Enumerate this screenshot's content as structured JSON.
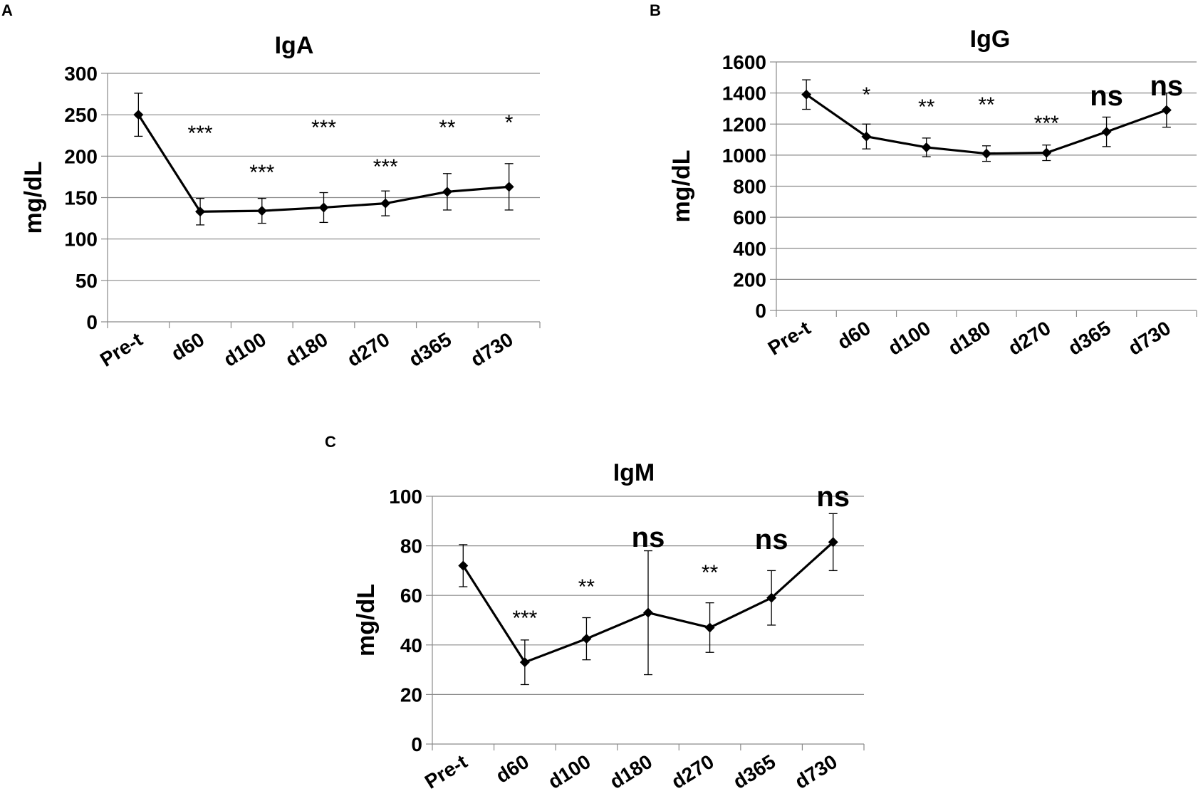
{
  "chart_data": [
    {
      "panel": "A",
      "type": "line",
      "title": "IgA",
      "ylabel": "mg/dL",
      "xlabel": "",
      "categories": [
        "Pre-t",
        "d60",
        "d100",
        "d180",
        "d270",
        "d365",
        "d730"
      ],
      "values": [
        250,
        133,
        134,
        138,
        143,
        157,
        163
      ],
      "errors": [
        26,
        16,
        15,
        18,
        15,
        22,
        28
      ],
      "significance": [
        "",
        "***",
        "***",
        "***",
        "***",
        "**",
        "*"
      ],
      "ylim": [
        0,
        300
      ],
      "yticks": [
        0,
        50,
        100,
        150,
        200,
        250,
        300
      ],
      "grid": true
    },
    {
      "panel": "B",
      "type": "line",
      "title": "IgG",
      "ylabel": "mg/dL",
      "xlabel": "",
      "categories": [
        "Pre-t",
        "d60",
        "d100",
        "d180",
        "d270",
        "d365",
        "d730"
      ],
      "values": [
        1390,
        1120,
        1050,
        1010,
        1015,
        1150,
        1290
      ],
      "errors": [
        95,
        80,
        60,
        50,
        50,
        95,
        110
      ],
      "significance": [
        "",
        "*",
        "**",
        "**",
        "***",
        "ns",
        "ns"
      ],
      "ylim": [
        0,
        1600
      ],
      "yticks": [
        0,
        200,
        400,
        600,
        800,
        1000,
        1200,
        1400,
        1600
      ],
      "grid": true
    },
    {
      "panel": "C",
      "type": "line",
      "title": "IgM",
      "ylabel": "mg/dL",
      "xlabel": "",
      "categories": [
        "Pre-t",
        "d60",
        "d100",
        "d180",
        "d270",
        "d365",
        "d730"
      ],
      "values": [
        72,
        33,
        42.5,
        53,
        47,
        59,
        81.5
      ],
      "errors": [
        8.5,
        9,
        8.5,
        25,
        10,
        11,
        11.5
      ],
      "significance": [
        "",
        "***",
        "**",
        "ns",
        "**",
        "ns",
        "ns"
      ],
      "ylim": [
        0,
        100
      ],
      "yticks": [
        0,
        20,
        40,
        60,
        80,
        100
      ],
      "grid": true
    }
  ]
}
